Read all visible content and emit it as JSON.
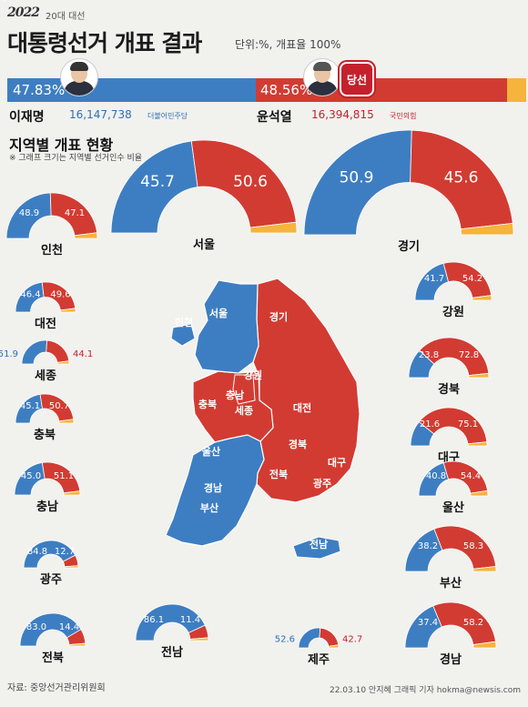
{
  "header": {
    "logo": "2022",
    "logo_sub": "20대 대선",
    "title": "대통령선거 개표 결과",
    "unit": "단위:%, 개표율 100%",
    "winner_badge": "당선"
  },
  "candidates": [
    {
      "name": "이재명",
      "votes": "16,147,738",
      "party": "더불어민주당",
      "pct": 47.83,
      "pct_label": "47.83%",
      "color": "#3d7ec2"
    },
    {
      "name": "윤석열",
      "votes": "16,394,815",
      "party": "국민의힘",
      "pct": 48.56,
      "pct_label": "48.56%",
      "color": "#d23b32"
    }
  ],
  "section": {
    "title": "지역별 개표 현황",
    "note": "※ 그래프 크기는 지역별 선거인수 비율"
  },
  "colors": {
    "blue": "#3d7ec2",
    "red": "#d23b32",
    "other": "#f5b43c",
    "bg": "#f1f1ee"
  },
  "chart_data": {
    "type": "pie",
    "series": [
      {
        "name": "이재명",
        "color": "#3d7ec2"
      },
      {
        "name": "윤석열",
        "color": "#d23b32"
      }
    ],
    "regions": [
      {
        "name": "인천",
        "a": 48.9,
        "b": 47.1
      },
      {
        "name": "서울",
        "a": 45.7,
        "b": 50.6
      },
      {
        "name": "경기",
        "a": 50.9,
        "b": 45.6
      },
      {
        "name": "대전",
        "a": 46.4,
        "b": 49.6
      },
      {
        "name": "세종",
        "a": 51.9,
        "b": 44.1
      },
      {
        "name": "충북",
        "a": 45.1,
        "b": 50.7
      },
      {
        "name": "충남",
        "a": 45.0,
        "b": 51.1
      },
      {
        "name": "광주",
        "a": 84.8,
        "b": 12.7
      },
      {
        "name": "전북",
        "a": 83.0,
        "b": 14.4
      },
      {
        "name": "전남",
        "a": 86.1,
        "b": 11.4
      },
      {
        "name": "제주",
        "a": 52.6,
        "b": 42.7
      },
      {
        "name": "강원",
        "a": 41.7,
        "b": 54.2
      },
      {
        "name": "경북",
        "a": 23.8,
        "b": 72.8
      },
      {
        "name": "대구",
        "a": 21.6,
        "b": 75.1
      },
      {
        "name": "울산",
        "a": 40.8,
        "b": 54.4
      },
      {
        "name": "부산",
        "a": 38.2,
        "b": 58.3
      },
      {
        "name": "경남",
        "a": 37.4,
        "b": 58.2
      }
    ],
    "map_labels": [
      "인천",
      "서울",
      "경기",
      "강원",
      "충북",
      "충남",
      "세종",
      "대전",
      "경북",
      "대구",
      "울산",
      "전북",
      "경남",
      "광주",
      "부산",
      "전남",
      "제주"
    ]
  },
  "footer": {
    "source": "자료: 중앙선거관리위원회",
    "credit": "22.03.10 안지혜 그래픽 기자 hokma@newsis.com"
  }
}
